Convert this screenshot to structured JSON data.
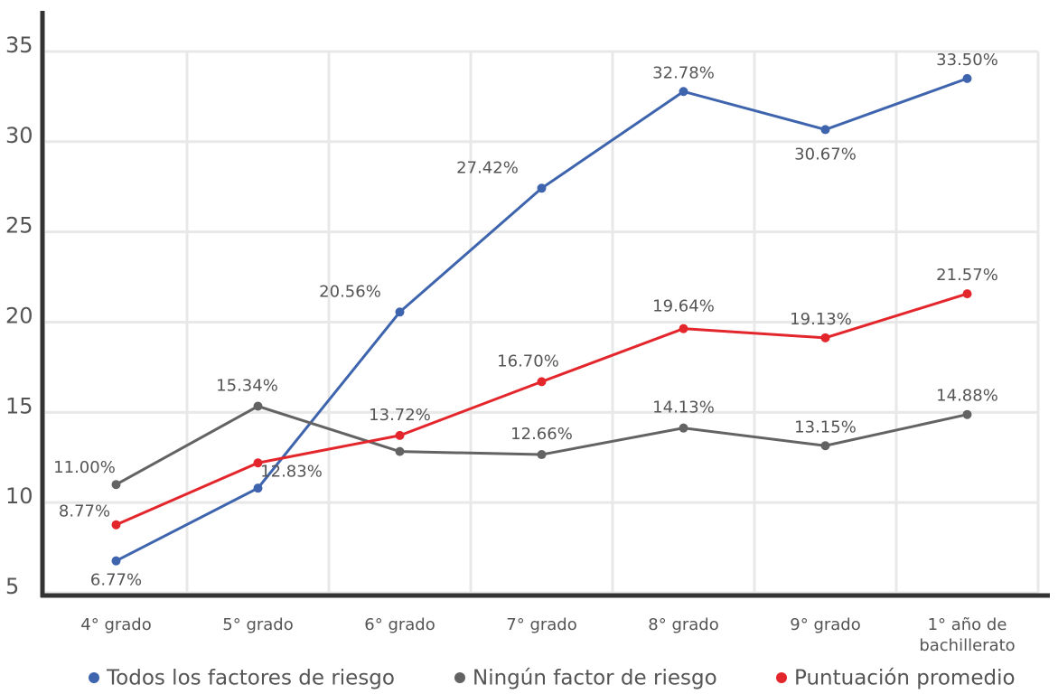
{
  "chart_data": {
    "type": "line",
    "categories": [
      "4° grado",
      "5° grado",
      "6° grado",
      "7° grado",
      "8° grado",
      "9° grado",
      "1° año de bachillerato"
    ],
    "series": [
      {
        "name": "Todos los factores de riesgo",
        "color": "#3e64ae",
        "values": [
          6.77,
          10.8,
          20.56,
          27.42,
          32.78,
          30.67,
          33.5
        ],
        "value_labels": [
          "6.77%",
          null,
          "20.56%",
          "27.42%",
          "32.78%",
          "30.67%",
          "33.50%"
        ]
      },
      {
        "name": "Ningún factor de riesgo",
        "color": "#636363",
        "values": [
          11.0,
          15.34,
          12.83,
          12.66,
          14.13,
          13.15,
          14.88
        ],
        "value_labels": [
          "11.00%",
          "15.34%",
          "12.83%",
          "12.66%",
          "14.13%",
          "13.15%",
          "14.88%"
        ]
      },
      {
        "name": "Puntuación promedio",
        "color": "#e3262c",
        "values": [
          8.77,
          12.2,
          13.72,
          16.7,
          19.64,
          19.13,
          21.57
        ],
        "value_labels": [
          "8.77%",
          null,
          "13.72%",
          "16.70%",
          "19.64%",
          "19.13%",
          "21.57%"
        ]
      }
    ],
    "ylim": [
      5,
      37
    ],
    "yticks": [
      5,
      10,
      15,
      20,
      25,
      30,
      35
    ],
    "grid": true,
    "legend": "bottom"
  }
}
